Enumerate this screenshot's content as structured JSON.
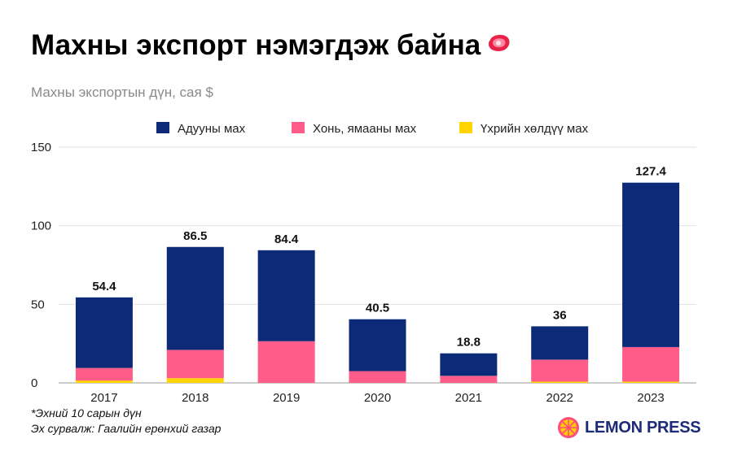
{
  "header": {
    "title": "Махны экспорт нэмэгдэж байна",
    "title_icon": "meat-steak-icon",
    "subtitle": "Махны экспортын дүн, сая $"
  },
  "chart_data": {
    "type": "bar",
    "stacked": true,
    "title": "Махны экспорт нэмэгдэж байна",
    "subtitle": "Махны экспортын дүн, сая $",
    "xlabel": "",
    "ylabel": "",
    "categories": [
      "2017",
      "2018",
      "2019",
      "2020",
      "2021",
      "2022",
      "2023"
    ],
    "series": [
      {
        "name": "Үхрийн хөлдүү мах",
        "color": "#ffd400",
        "values": [
          1.5,
          3,
          0,
          0,
          0,
          0.8,
          0.8
        ]
      },
      {
        "name": "Хонь, ямааны мах",
        "color": "#ff5c8a",
        "values": [
          8,
          18,
          26.5,
          7.5,
          4.5,
          14,
          22
        ]
      },
      {
        "name": "Адууны мах",
        "color": "#0d2a78",
        "values": [
          44.9,
          65.5,
          57.9,
          33,
          14.3,
          21.2,
          104.6
        ]
      }
    ],
    "legend_order": [
      2,
      1,
      0
    ],
    "totals": [
      54.4,
      86.5,
      84.4,
      40.5,
      18.8,
      36,
      127.4
    ],
    "total_labels": [
      "54.4",
      "86.5",
      "84.4",
      "40.5",
      "18.8",
      "36",
      "127.4"
    ],
    "yticks": [
      0,
      50,
      100,
      150
    ],
    "ylim": [
      0,
      150
    ],
    "grid": true,
    "legend_position": "top"
  },
  "footer": {
    "note": "*Эхний 10 сарын дүн",
    "source": "Эх сурвалж: Гаалийн ерөнхий газар",
    "brand": "LEMON PRESS",
    "brand_icon": "lemon-slice-icon"
  },
  "colors": {
    "grid": "#e2e2e2",
    "axis": "#9a9a9a",
    "tick_text": "#222222",
    "brand": "#1c2a78",
    "lemon": "#ffcc00",
    "lemon_ring": "#ff4d7d"
  }
}
